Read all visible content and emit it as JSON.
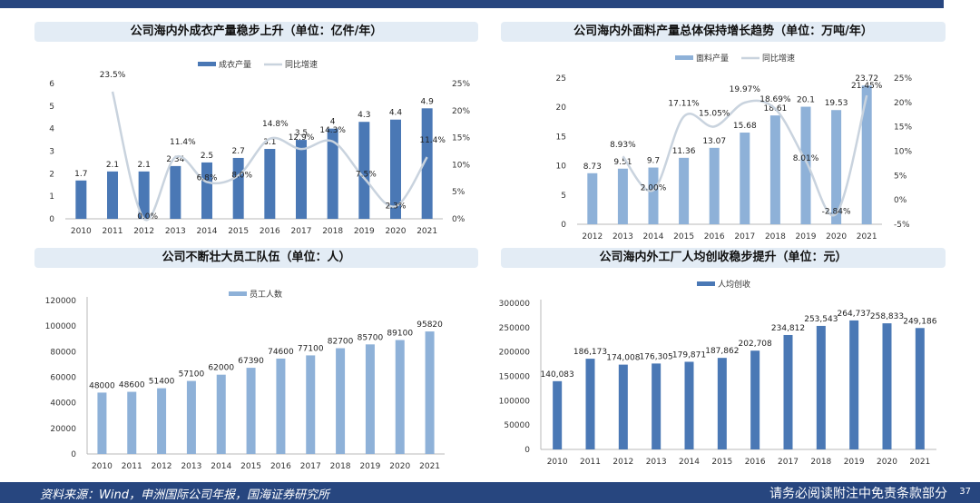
{
  "footer": {
    "source": "资料来源：Wind，申洲国际公司年报，国海证券研究所",
    "disclaimer": "请务必阅读附注中免责条款部分",
    "page": "37"
  },
  "colors": {
    "bar_dark": "#4a78b5",
    "bar_light": "#8eb1d8",
    "line": "#c9d3de"
  },
  "charts": [
    {
      "title": "公司海内外成衣产量稳步上升（单位：亿件/年）",
      "chart_data": {
        "type": "bar",
        "categories": [
          "2010",
          "2011",
          "2012",
          "2013",
          "2014",
          "2015",
          "2016",
          "2017",
          "2018",
          "2019",
          "2020",
          "2021"
        ],
        "series": [
          {
            "name": "成衣产量",
            "values": [
              1.7,
              2.1,
              2.1,
              2.34,
              2.5,
              2.7,
              3.1,
              3.5,
              4,
              4.3,
              4.4,
              4.9
            ],
            "labels": [
              "1.7",
              "2.1",
              "2.1",
              "2.34",
              "2.5",
              "2.7",
              "3.1",
              "3.5",
              "4",
              "4.3",
              "4.4",
              "4.9"
            ]
          },
          {
            "name": "同比增速",
            "type": "line",
            "axis": "right",
            "values": [
              null,
              23.5,
              0.0,
              11.4,
              6.8,
              8.0,
              14.8,
              12.9,
              14.3,
              7.5,
              2.3,
              11.4
            ],
            "labels": [
              "",
              "23.5%",
              "0.0%",
              "11.4%",
              "6.8%",
              "8.0%",
              "14.8%",
              "12.9%",
              "14.3%",
              "7.5%",
              "2.3%",
              "11.4%"
            ]
          }
        ],
        "ylim": [
          0,
          6
        ],
        "yticks": [
          "0",
          "1",
          "2",
          "3",
          "4",
          "5",
          "6"
        ],
        "y2lim": [
          0,
          25
        ],
        "y2ticks": [
          "0%",
          "5%",
          "10%",
          "15%",
          "20%",
          "25%"
        ],
        "legend": "top"
      }
    },
    {
      "title": "公司海内外面料产量总体保持增长趋势（单位：万吨/年）",
      "chart_data": {
        "type": "bar",
        "categories": [
          "2012",
          "2013",
          "2014",
          "2015",
          "2016",
          "2017",
          "2018",
          "2019",
          "2020",
          "2021"
        ],
        "series": [
          {
            "name": "面料产量",
            "values": [
              8.73,
              9.51,
              9.7,
              11.36,
              13.07,
              15.68,
              18.61,
              20.1,
              19.53,
              23.72
            ],
            "labels": [
              "8.73",
              "9.51",
              "9.7",
              "11.36",
              "13.07",
              "15.68",
              "18.61",
              "20.1",
              "19.53",
              "23.72"
            ]
          },
          {
            "name": "同比增速",
            "type": "line",
            "axis": "right",
            "values": [
              null,
              8.93,
              2.0,
              17.11,
              15.05,
              19.97,
              18.69,
              8.01,
              -2.84,
              21.45
            ],
            "labels": [
              "",
              "8.93%",
              "2.00%",
              "17.11%",
              "15.05%",
              "19.97%",
              "18.69%",
              "8.01%",
              "-2.84%",
              "21.45%"
            ]
          }
        ],
        "ylim": [
          0,
          25
        ],
        "yticks": [
          "0",
          "5",
          "10",
          "15",
          "20",
          "25"
        ],
        "y2lim": [
          -5,
          25
        ],
        "y2ticks": [
          "-5%",
          "0%",
          "5%",
          "10%",
          "15%",
          "20%",
          "25%"
        ],
        "legend": "top"
      }
    },
    {
      "title": "公司不断壮大员工队伍（单位：人）",
      "chart_data": {
        "type": "bar",
        "categories": [
          "2010",
          "2011",
          "2012",
          "2013",
          "2014",
          "2015",
          "2016",
          "2017",
          "2018",
          "2019",
          "2020",
          "2021"
        ],
        "series": [
          {
            "name": "员工人数",
            "values": [
              48000,
              48600,
              51400,
              57100,
              62000,
              67390,
              74600,
              77100,
              82700,
              85700,
              89100,
              95820
            ],
            "labels": [
              "48000",
              "48600",
              "51400",
              "57100",
              "62000",
              "67390",
              "74600",
              "77100",
              "82700",
              "85700",
              "89100",
              "95820"
            ]
          }
        ],
        "ylim": [
          0,
          120000
        ],
        "yticks": [
          "0",
          "20000",
          "40000",
          "60000",
          "80000",
          "100000",
          "120000"
        ],
        "legend": "top"
      }
    },
    {
      "title": "公司海内外工厂人均创收稳步提升（单位：元）",
      "chart_data": {
        "type": "bar",
        "categories": [
          "2010",
          "2011",
          "2012",
          "2013",
          "2014",
          "2015",
          "2016",
          "2017",
          "2018",
          "2019",
          "2020",
          "2021"
        ],
        "series": [
          {
            "name": "人均创收",
            "values": [
              140083,
              186173,
              174008,
              176305,
              179871,
              187862,
              202708,
              234812,
              253543,
              264737,
              258833,
              249186
            ],
            "labels": [
              "140,083",
              "186,173",
              "174,008",
              "176,305",
              "179,871",
              "187,862",
              "202,708",
              "234,812",
              "253,543",
              "264,737",
              "258,833",
              "249,186"
            ]
          }
        ],
        "ylim": [
          0,
          300000
        ],
        "yticks": [
          "0",
          "50000",
          "100000",
          "150000",
          "200000",
          "250000",
          "300000"
        ],
        "legend": "top"
      }
    }
  ]
}
